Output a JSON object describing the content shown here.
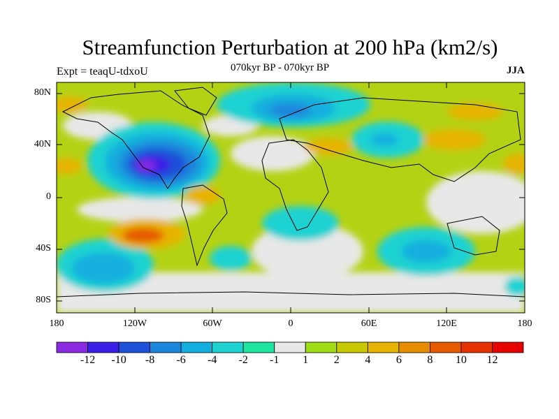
{
  "title": "Streamfunction Perturbation at 200 hPa (km2/s)",
  "subtitle_left": "Expt = teaqU-tdxoU",
  "subtitle_center": "070kyr BP - 070kyr BP",
  "subtitle_right": "JJA",
  "lat_labels": [
    "80N",
    "40N",
    "0",
    "40S",
    "80S"
  ],
  "lon_labels": [
    "180",
    "120W",
    "60W",
    "0",
    "60E",
    "120E",
    "180"
  ],
  "colorbar": {
    "labels": [
      "-12",
      "-10",
      "-8",
      "-6",
      "-4",
      "-2",
      "-1",
      "1",
      "2",
      "4",
      "6",
      "8",
      "10",
      "12"
    ],
    "colors": [
      "#8a2be2",
      "#3a1ee6",
      "#1e50d8",
      "#1a86dc",
      "#12aede",
      "#1ed2d2",
      "#1ee6a0",
      "#e8e8e8",
      "#a0dc14",
      "#c8c800",
      "#e6b400",
      "#e68c00",
      "#e65a00",
      "#e63200",
      "#e60000"
    ]
  },
  "map_data": {
    "type": "filled-contour",
    "field": "streamfunction perturbation",
    "units": "km2/s",
    "level_hPa": 200
  }
}
